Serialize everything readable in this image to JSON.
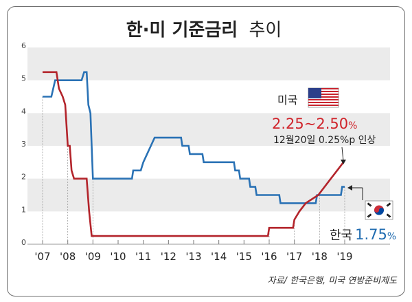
{
  "title": {
    "main": "한·미 기준금리",
    "sub": "추이"
  },
  "source": "자료/ 한국은행, 미국 연방준비제도",
  "annotations": {
    "us_label": "미국",
    "us_rate": "2.25~2.50",
    "us_rate_unit": "%",
    "us_note": "12월20일 0.25%p 인상",
    "kr_label": "한국",
    "kr_rate": "1.75",
    "kr_rate_unit": "%"
  },
  "colors": {
    "us": "#b3242b",
    "korea": "#2a72b5",
    "band": "#ebebeb",
    "us_text": "#d0242b",
    "kr_text": "#1f6bb0"
  },
  "chart_data": {
    "type": "line",
    "title": "한·미 기준금리 추이",
    "ylim": [
      0,
      6
    ],
    "xlim": [
      2007.0,
      2019.0
    ],
    "y_ticks": [
      "0",
      "1",
      "2",
      "3",
      "4",
      "5",
      "6"
    ],
    "x_ticks": [
      {
        "label": "'07",
        "x": 2007.0
      },
      {
        "label": "'08",
        "x": 2008.0
      },
      {
        "label": "'09",
        "x": 2009.0
      },
      {
        "label": "'10",
        "x": 2010.0
      },
      {
        "label": "'11",
        "x": 2011.0
      },
      {
        "label": "'12",
        "x": 2012.0
      },
      {
        "label": "'13",
        "x": 2013.0
      },
      {
        "label": "'14",
        "x": 2014.0
      },
      {
        "label": "'15",
        "x": 2015.0
      },
      {
        "label": "'16",
        "x": 2016.0
      },
      {
        "label": "'17",
        "x": 2017.0
      },
      {
        "label": "'18",
        "x": 2018.0
      },
      {
        "label": "'19",
        "x": 2019.0
      }
    ],
    "series": [
      {
        "name": "미국",
        "points": [
          [
            2007.0,
            5.25
          ],
          [
            2007.55,
            5.25
          ],
          [
            2007.65,
            4.75
          ],
          [
            2007.8,
            4.5
          ],
          [
            2007.9,
            4.25
          ],
          [
            2008.0,
            3.0
          ],
          [
            2008.08,
            3.0
          ],
          [
            2008.15,
            2.25
          ],
          [
            2008.25,
            2.0
          ],
          [
            2008.75,
            2.0
          ],
          [
            2008.8,
            1.5
          ],
          [
            2008.85,
            1.0
          ],
          [
            2008.95,
            0.25
          ],
          [
            2015.95,
            0.25
          ],
          [
            2016.0,
            0.5
          ],
          [
            2016.95,
            0.5
          ],
          [
            2017.0,
            0.75
          ],
          [
            2017.2,
            1.0
          ],
          [
            2017.45,
            1.25
          ],
          [
            2017.95,
            1.5
          ],
          [
            2018.2,
            1.75
          ],
          [
            2018.45,
            2.0
          ],
          [
            2018.7,
            2.25
          ],
          [
            2018.95,
            2.5
          ]
        ]
      },
      {
        "name": "한국",
        "points": [
          [
            2007.0,
            4.5
          ],
          [
            2007.35,
            4.5
          ],
          [
            2007.5,
            5.0
          ],
          [
            2008.55,
            5.0
          ],
          [
            2008.65,
            5.25
          ],
          [
            2008.75,
            5.25
          ],
          [
            2008.82,
            4.25
          ],
          [
            2008.9,
            4.0
          ],
          [
            2009.0,
            2.0
          ],
          [
            2010.55,
            2.0
          ],
          [
            2010.6,
            2.25
          ],
          [
            2010.9,
            2.25
          ],
          [
            2011.0,
            2.5
          ],
          [
            2011.15,
            2.75
          ],
          [
            2011.3,
            3.0
          ],
          [
            2011.45,
            3.25
          ],
          [
            2012.5,
            3.25
          ],
          [
            2012.55,
            3.0
          ],
          [
            2012.8,
            3.0
          ],
          [
            2012.85,
            2.75
          ],
          [
            2013.35,
            2.75
          ],
          [
            2013.4,
            2.5
          ],
          [
            2014.6,
            2.5
          ],
          [
            2014.65,
            2.25
          ],
          [
            2014.8,
            2.25
          ],
          [
            2014.85,
            2.0
          ],
          [
            2015.2,
            2.0
          ],
          [
            2015.25,
            1.75
          ],
          [
            2015.45,
            1.75
          ],
          [
            2015.5,
            1.5
          ],
          [
            2016.4,
            1.5
          ],
          [
            2016.45,
            1.25
          ],
          [
            2017.85,
            1.25
          ],
          [
            2017.9,
            1.5
          ],
          [
            2018.85,
            1.5
          ],
          [
            2018.9,
            1.75
          ],
          [
            2019.0,
            1.75
          ]
        ]
      }
    ]
  }
}
